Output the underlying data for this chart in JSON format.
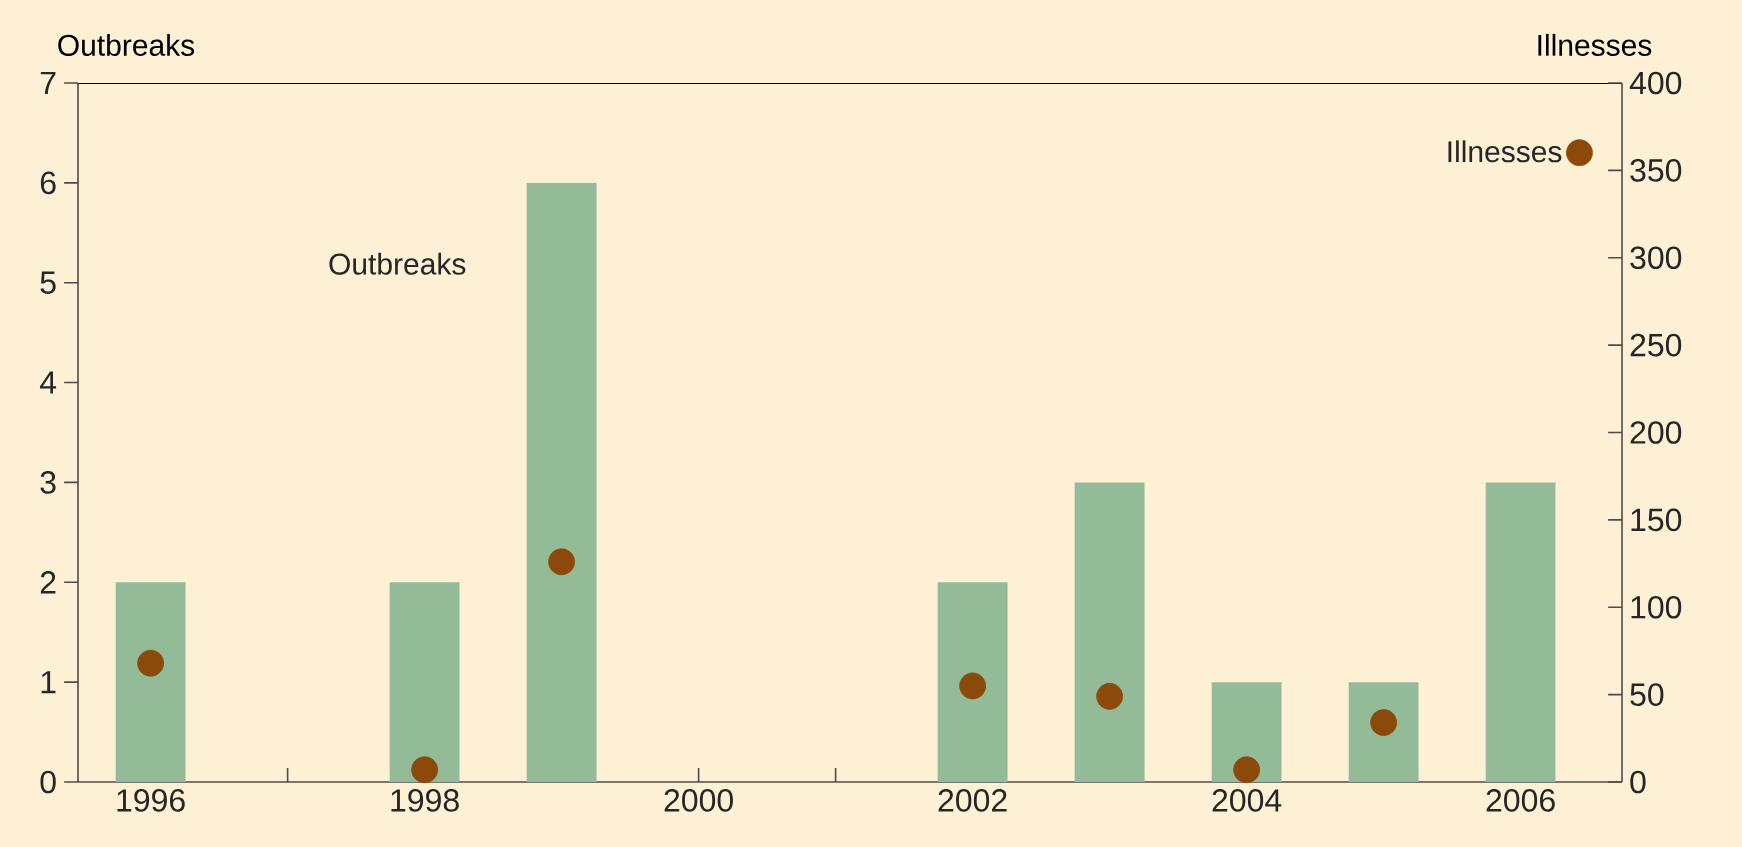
{
  "chart_data": {
    "type": "bar",
    "ylabel": "Outbreaks",
    "y2label": "Illnesses",
    "x": [
      1996,
      1997,
      1998,
      1999,
      2000,
      2001,
      2002,
      2003,
      2004,
      2005,
      2006
    ],
    "series": [
      {
        "name": "Outbreaks",
        "color": "#94bb98",
        "values": [
          2,
          0,
          2,
          6,
          0,
          0,
          2,
          3,
          1,
          1,
          3
        ]
      },
      {
        "name": "Illnesses",
        "type": "scatter",
        "axis": "y2",
        "color": "#8b4a0a",
        "values": [
          68,
          null,
          7,
          126,
          null,
          null,
          55,
          49,
          7,
          34,
          null
        ]
      }
    ],
    "xlim": [
      1995.47,
      2006.74
    ],
    "xticks": [
      1996,
      {
        "value": 1997,
        "label": null
      },
      1998,
      {
        "value": 1999,
        "label": null
      },
      2000,
      {
        "value": 2001,
        "label": null
      },
      2002,
      {
        "value": 2003,
        "label": null
      },
      2004,
      {
        "value": 2005,
        "label": null
      },
      2006
    ],
    "ylim": [
      0,
      7
    ],
    "yticks": [
      0,
      1,
      2,
      3,
      4,
      5,
      6,
      7
    ],
    "y2lim": [
      0,
      400
    ],
    "y2ticks": [
      0,
      50,
      100,
      150,
      200,
      250,
      300,
      350,
      400
    ],
    "legend": "top right",
    "grid": false
  }
}
